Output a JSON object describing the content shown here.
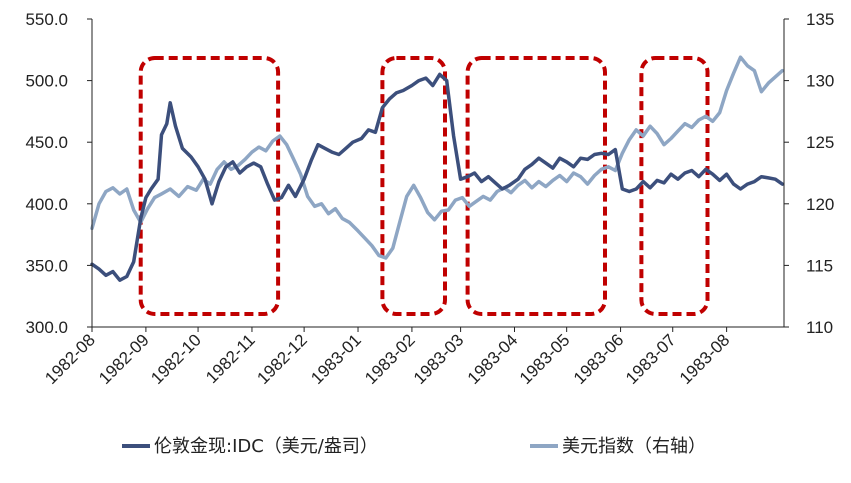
{
  "chart_data": {
    "type": "line",
    "title": "",
    "xlabel": "",
    "ylabel": "",
    "x_ticks": [
      "1982-08",
      "1982-09",
      "1982-10",
      "1982-11",
      "1982-12",
      "1983-01",
      "1983-02",
      "1983-03",
      "1983-04",
      "1983-05",
      "1983-06",
      "1983-07",
      "1983-08"
    ],
    "x_range": [
      "1982-08-01",
      "1983-09-03"
    ],
    "y_left": {
      "range": [
        300,
        550
      ],
      "ticks": [
        "300.0",
        "350.0",
        "400.0",
        "450.0",
        "500.0",
        "550.0"
      ]
    },
    "y_right": {
      "range": [
        110,
        135
      ],
      "ticks": [
        "110",
        "115",
        "120",
        "125",
        "130",
        "135"
      ]
    },
    "grid": false,
    "legend_position": "bottom",
    "series": [
      {
        "name": "伦敦金现:IDC（美元/盎司）",
        "axis": "left",
        "color": "#3c4f7c",
        "points": [
          [
            "1982-08-01",
            351
          ],
          [
            "1982-08-05",
            347
          ],
          [
            "1982-08-09",
            342
          ],
          [
            "1982-08-13",
            345
          ],
          [
            "1982-08-17",
            338
          ],
          [
            "1982-08-21",
            341
          ],
          [
            "1982-08-25",
            353
          ],
          [
            "1982-08-29",
            388
          ],
          [
            "1982-09-01",
            405
          ],
          [
            "1982-09-04",
            412
          ],
          [
            "1982-09-08",
            420
          ],
          [
            "1982-09-10",
            456
          ],
          [
            "1982-09-13",
            465
          ],
          [
            "1982-09-15",
            482
          ],
          [
            "1982-09-18",
            463
          ],
          [
            "1982-09-22",
            445
          ],
          [
            "1982-09-27",
            438
          ],
          [
            "1982-10-01",
            430
          ],
          [
            "1982-10-05",
            420
          ],
          [
            "1982-10-09",
            400
          ],
          [
            "1982-10-13",
            418
          ],
          [
            "1982-10-17",
            430
          ],
          [
            "1982-10-21",
            434
          ],
          [
            "1982-10-25",
            425
          ],
          [
            "1982-10-29",
            430
          ],
          [
            "1982-11-02",
            433
          ],
          [
            "1982-11-06",
            430
          ],
          [
            "1982-11-10",
            416
          ],
          [
            "1982-11-14",
            403
          ],
          [
            "1982-11-18",
            405
          ],
          [
            "1982-11-22",
            415
          ],
          [
            "1982-11-26",
            406
          ],
          [
            "1982-12-01",
            420
          ],
          [
            "1982-12-05",
            435
          ],
          [
            "1982-12-09",
            448
          ],
          [
            "1982-12-13",
            445
          ],
          [
            "1982-12-17",
            442
          ],
          [
            "1982-12-21",
            440
          ],
          [
            "1982-12-25",
            445
          ],
          [
            "1982-12-29",
            450
          ],
          [
            "1983-01-03",
            453
          ],
          [
            "1983-01-07",
            460
          ],
          [
            "1983-01-11",
            458
          ],
          [
            "1983-01-15",
            478
          ],
          [
            "1983-01-19",
            485
          ],
          [
            "1983-01-23",
            490
          ],
          [
            "1983-01-27",
            492
          ],
          [
            "1983-02-01",
            496
          ],
          [
            "1983-02-05",
            500
          ],
          [
            "1983-02-09",
            502
          ],
          [
            "1983-02-13",
            496
          ],
          [
            "1983-02-17",
            505
          ],
          [
            "1983-02-21",
            500
          ],
          [
            "1983-02-25",
            455
          ],
          [
            "1983-03-01",
            420
          ],
          [
            "1983-03-05",
            422
          ],
          [
            "1983-03-09",
            425
          ],
          [
            "1983-03-13",
            418
          ],
          [
            "1983-03-17",
            422
          ],
          [
            "1983-03-21",
            417
          ],
          [
            "1983-03-25",
            412
          ],
          [
            "1983-03-29",
            415
          ],
          [
            "1983-04-03",
            420
          ],
          [
            "1983-04-07",
            428
          ],
          [
            "1983-04-11",
            432
          ],
          [
            "1983-04-15",
            437
          ],
          [
            "1983-04-19",
            433
          ],
          [
            "1983-04-23",
            429
          ],
          [
            "1983-04-27",
            437
          ],
          [
            "1983-05-01",
            434
          ],
          [
            "1983-05-05",
            430
          ],
          [
            "1983-05-09",
            437
          ],
          [
            "1983-05-13",
            436
          ],
          [
            "1983-05-17",
            440
          ],
          [
            "1983-05-21",
            441
          ],
          [
            "1983-05-25",
            440
          ],
          [
            "1983-05-29",
            444
          ],
          [
            "1983-06-02",
            412
          ],
          [
            "1983-06-06",
            410
          ],
          [
            "1983-06-10",
            412
          ],
          [
            "1983-06-14",
            418
          ],
          [
            "1983-06-18",
            413
          ],
          [
            "1983-06-22",
            419
          ],
          [
            "1983-06-26",
            417
          ],
          [
            "1983-06-30",
            424
          ],
          [
            "1983-07-04",
            420
          ],
          [
            "1983-07-08",
            425
          ],
          [
            "1983-07-12",
            427
          ],
          [
            "1983-07-16",
            422
          ],
          [
            "1983-07-20",
            428
          ],
          [
            "1983-07-24",
            424
          ],
          [
            "1983-07-28",
            419
          ],
          [
            "1983-08-01",
            424
          ],
          [
            "1983-08-05",
            416
          ],
          [
            "1983-08-09",
            412
          ],
          [
            "1983-08-13",
            416
          ],
          [
            "1983-08-17",
            418
          ],
          [
            "1983-08-21",
            422
          ],
          [
            "1983-08-25",
            421
          ],
          [
            "1983-08-29",
            420
          ],
          [
            "1983-09-02",
            416
          ]
        ]
      },
      {
        "name": "美元指数（右轴）",
        "axis": "right",
        "color": "#8ea6c4",
        "points": [
          [
            "1982-08-01",
            118
          ],
          [
            "1982-08-05",
            120
          ],
          [
            "1982-08-09",
            121
          ],
          [
            "1982-08-13",
            121.3
          ],
          [
            "1982-08-17",
            120.8
          ],
          [
            "1982-08-21",
            121.2
          ],
          [
            "1982-08-25",
            119.5
          ],
          [
            "1982-08-29",
            118.5
          ],
          [
            "1982-09-02",
            119.6
          ],
          [
            "1982-09-06",
            120.5
          ],
          [
            "1982-09-10",
            120.8
          ],
          [
            "1982-09-15",
            121.2
          ],
          [
            "1982-09-20",
            120.6
          ],
          [
            "1982-09-25",
            121.4
          ],
          [
            "1982-09-30",
            121.1
          ],
          [
            "1982-10-04",
            122
          ],
          [
            "1982-10-08",
            121.6
          ],
          [
            "1982-10-12",
            122.8
          ],
          [
            "1982-10-16",
            123.4
          ],
          [
            "1982-10-20",
            122.8
          ],
          [
            "1982-10-24",
            123.1
          ],
          [
            "1982-10-28",
            123.6
          ],
          [
            "1982-11-01",
            124.2
          ],
          [
            "1982-11-05",
            124.6
          ],
          [
            "1982-11-09",
            124.3
          ],
          [
            "1982-11-13",
            125.1
          ],
          [
            "1982-11-17",
            125.5
          ],
          [
            "1982-11-21",
            124.8
          ],
          [
            "1982-11-25",
            123.6
          ],
          [
            "1982-11-29",
            122.4
          ],
          [
            "1982-12-03",
            120.6
          ],
          [
            "1982-12-07",
            119.8
          ],
          [
            "1982-12-11",
            120
          ],
          [
            "1982-12-15",
            119.2
          ],
          [
            "1982-12-19",
            119.6
          ],
          [
            "1982-12-23",
            118.8
          ],
          [
            "1982-12-27",
            118.5
          ],
          [
            "1983-01-01",
            117.8
          ],
          [
            "1983-01-05",
            117.2
          ],
          [
            "1983-01-09",
            116.6
          ],
          [
            "1983-01-13",
            115.8
          ],
          [
            "1983-01-17",
            115.6
          ],
          [
            "1983-01-21",
            116.4
          ],
          [
            "1983-01-25",
            118.5
          ],
          [
            "1983-01-29",
            120.6
          ],
          [
            "1983-02-02",
            121.5
          ],
          [
            "1983-02-06",
            120.5
          ],
          [
            "1983-02-10",
            119.3
          ],
          [
            "1983-02-14",
            118.7
          ],
          [
            "1983-02-18",
            119.4
          ],
          [
            "1983-02-22",
            119.5
          ],
          [
            "1983-02-26",
            120.3
          ],
          [
            "1983-03-02",
            120.5
          ],
          [
            "1983-03-06",
            119.8
          ],
          [
            "1983-03-10",
            120.2
          ],
          [
            "1983-03-14",
            120.6
          ],
          [
            "1983-03-18",
            120.3
          ],
          [
            "1983-03-22",
            121
          ],
          [
            "1983-03-26",
            121.3
          ],
          [
            "1983-03-30",
            120.9
          ],
          [
            "1983-04-03",
            121.5
          ],
          [
            "1983-04-07",
            121.9
          ],
          [
            "1983-04-11",
            121.3
          ],
          [
            "1983-04-15",
            121.8
          ],
          [
            "1983-04-19",
            121.4
          ],
          [
            "1983-04-23",
            121.9
          ],
          [
            "1983-04-27",
            122.3
          ],
          [
            "1983-05-01",
            121.8
          ],
          [
            "1983-05-05",
            122.5
          ],
          [
            "1983-05-09",
            122.2
          ],
          [
            "1983-05-13",
            121.6
          ],
          [
            "1983-05-17",
            122.3
          ],
          [
            "1983-05-21",
            122.8
          ],
          [
            "1983-05-25",
            123
          ],
          [
            "1983-05-29",
            122.7
          ],
          [
            "1983-06-02",
            124.1
          ],
          [
            "1983-06-06",
            125.2
          ],
          [
            "1983-06-10",
            126
          ],
          [
            "1983-06-14",
            125.5
          ],
          [
            "1983-06-18",
            126.3
          ],
          [
            "1983-06-22",
            125.7
          ],
          [
            "1983-06-26",
            124.8
          ],
          [
            "1983-06-30",
            125.3
          ],
          [
            "1983-07-04",
            125.9
          ],
          [
            "1983-07-08",
            126.5
          ],
          [
            "1983-07-12",
            126.2
          ],
          [
            "1983-07-16",
            126.8
          ],
          [
            "1983-07-20",
            127.1
          ],
          [
            "1983-07-24",
            126.7
          ],
          [
            "1983-07-28",
            127.4
          ],
          [
            "1983-08-01",
            129.2
          ],
          [
            "1983-08-05",
            130.6
          ],
          [
            "1983-08-09",
            131.9
          ],
          [
            "1983-08-13",
            131.2
          ],
          [
            "1983-08-17",
            130.8
          ],
          [
            "1983-08-21",
            129.1
          ],
          [
            "1983-08-25",
            129.8
          ],
          [
            "1983-08-29",
            130.3
          ],
          [
            "1983-09-02",
            130.8
          ]
        ]
      }
    ],
    "highlight_ranges": [
      [
        "1982-08-29",
        "1982-11-16"
      ],
      [
        "1983-01-15",
        "1983-02-20"
      ],
      [
        "1983-03-05",
        "1983-05-23"
      ],
      [
        "1983-06-13",
        "1983-07-21"
      ]
    ],
    "highlight_color": "#c00000"
  }
}
